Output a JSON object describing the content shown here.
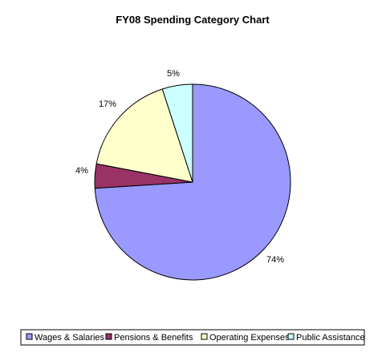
{
  "chart_data": {
    "type": "pie",
    "title": "FY08 Spending Category Chart",
    "categories": [
      "Wages & Salaries",
      "Pensions & Benefits",
      "Operating Expenses",
      "Public Assistance"
    ],
    "values": [
      74,
      4,
      17,
      5
    ],
    "value_labels": [
      "74%",
      "4%",
      "17%",
      "5%"
    ],
    "colors": [
      "#9999ff",
      "#993366",
      "#ffffcc",
      "#ccffff"
    ],
    "start_angle_deg": 0,
    "direction": "clockwise",
    "legend_position": "bottom",
    "grid": false
  }
}
